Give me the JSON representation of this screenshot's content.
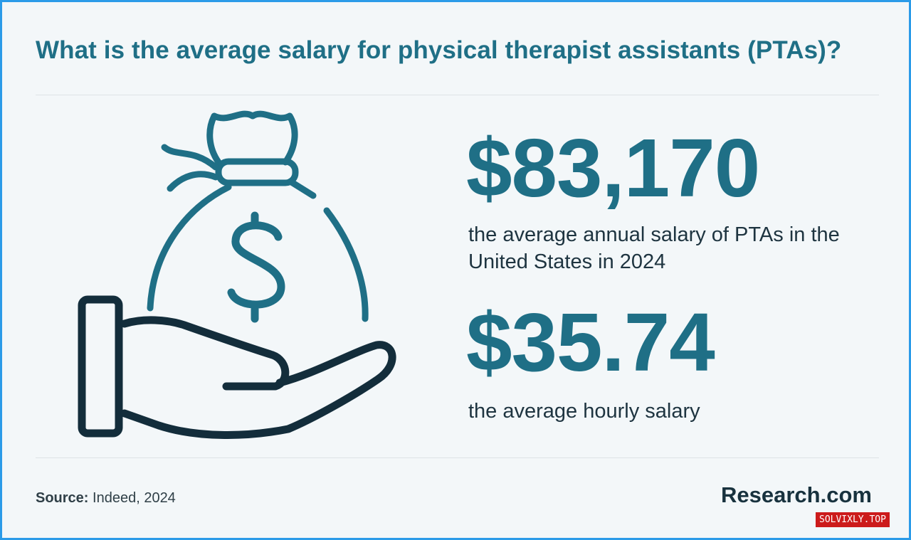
{
  "title": "What is the average salary for physical therapist assistants (PTAs)?",
  "stats": [
    {
      "value": "$83,170",
      "description": "the average annual salary of PTAs in the United States in 2024"
    },
    {
      "value": "$35.74",
      "description": "the average hourly salary"
    }
  ],
  "source": {
    "label": "Source:",
    "text": "Indeed, 2024"
  },
  "brand": "Research.com",
  "watermark": "SOLVIXLY.TOP",
  "icon": {
    "name": "money-bag-in-hand-icon",
    "symbol": "$"
  },
  "colors": {
    "accent": "#1f6f86",
    "text": "#1e3440",
    "background": "#f3f7f9",
    "border": "#2b9be8",
    "watermark_bg": "#cc1b1b"
  }
}
